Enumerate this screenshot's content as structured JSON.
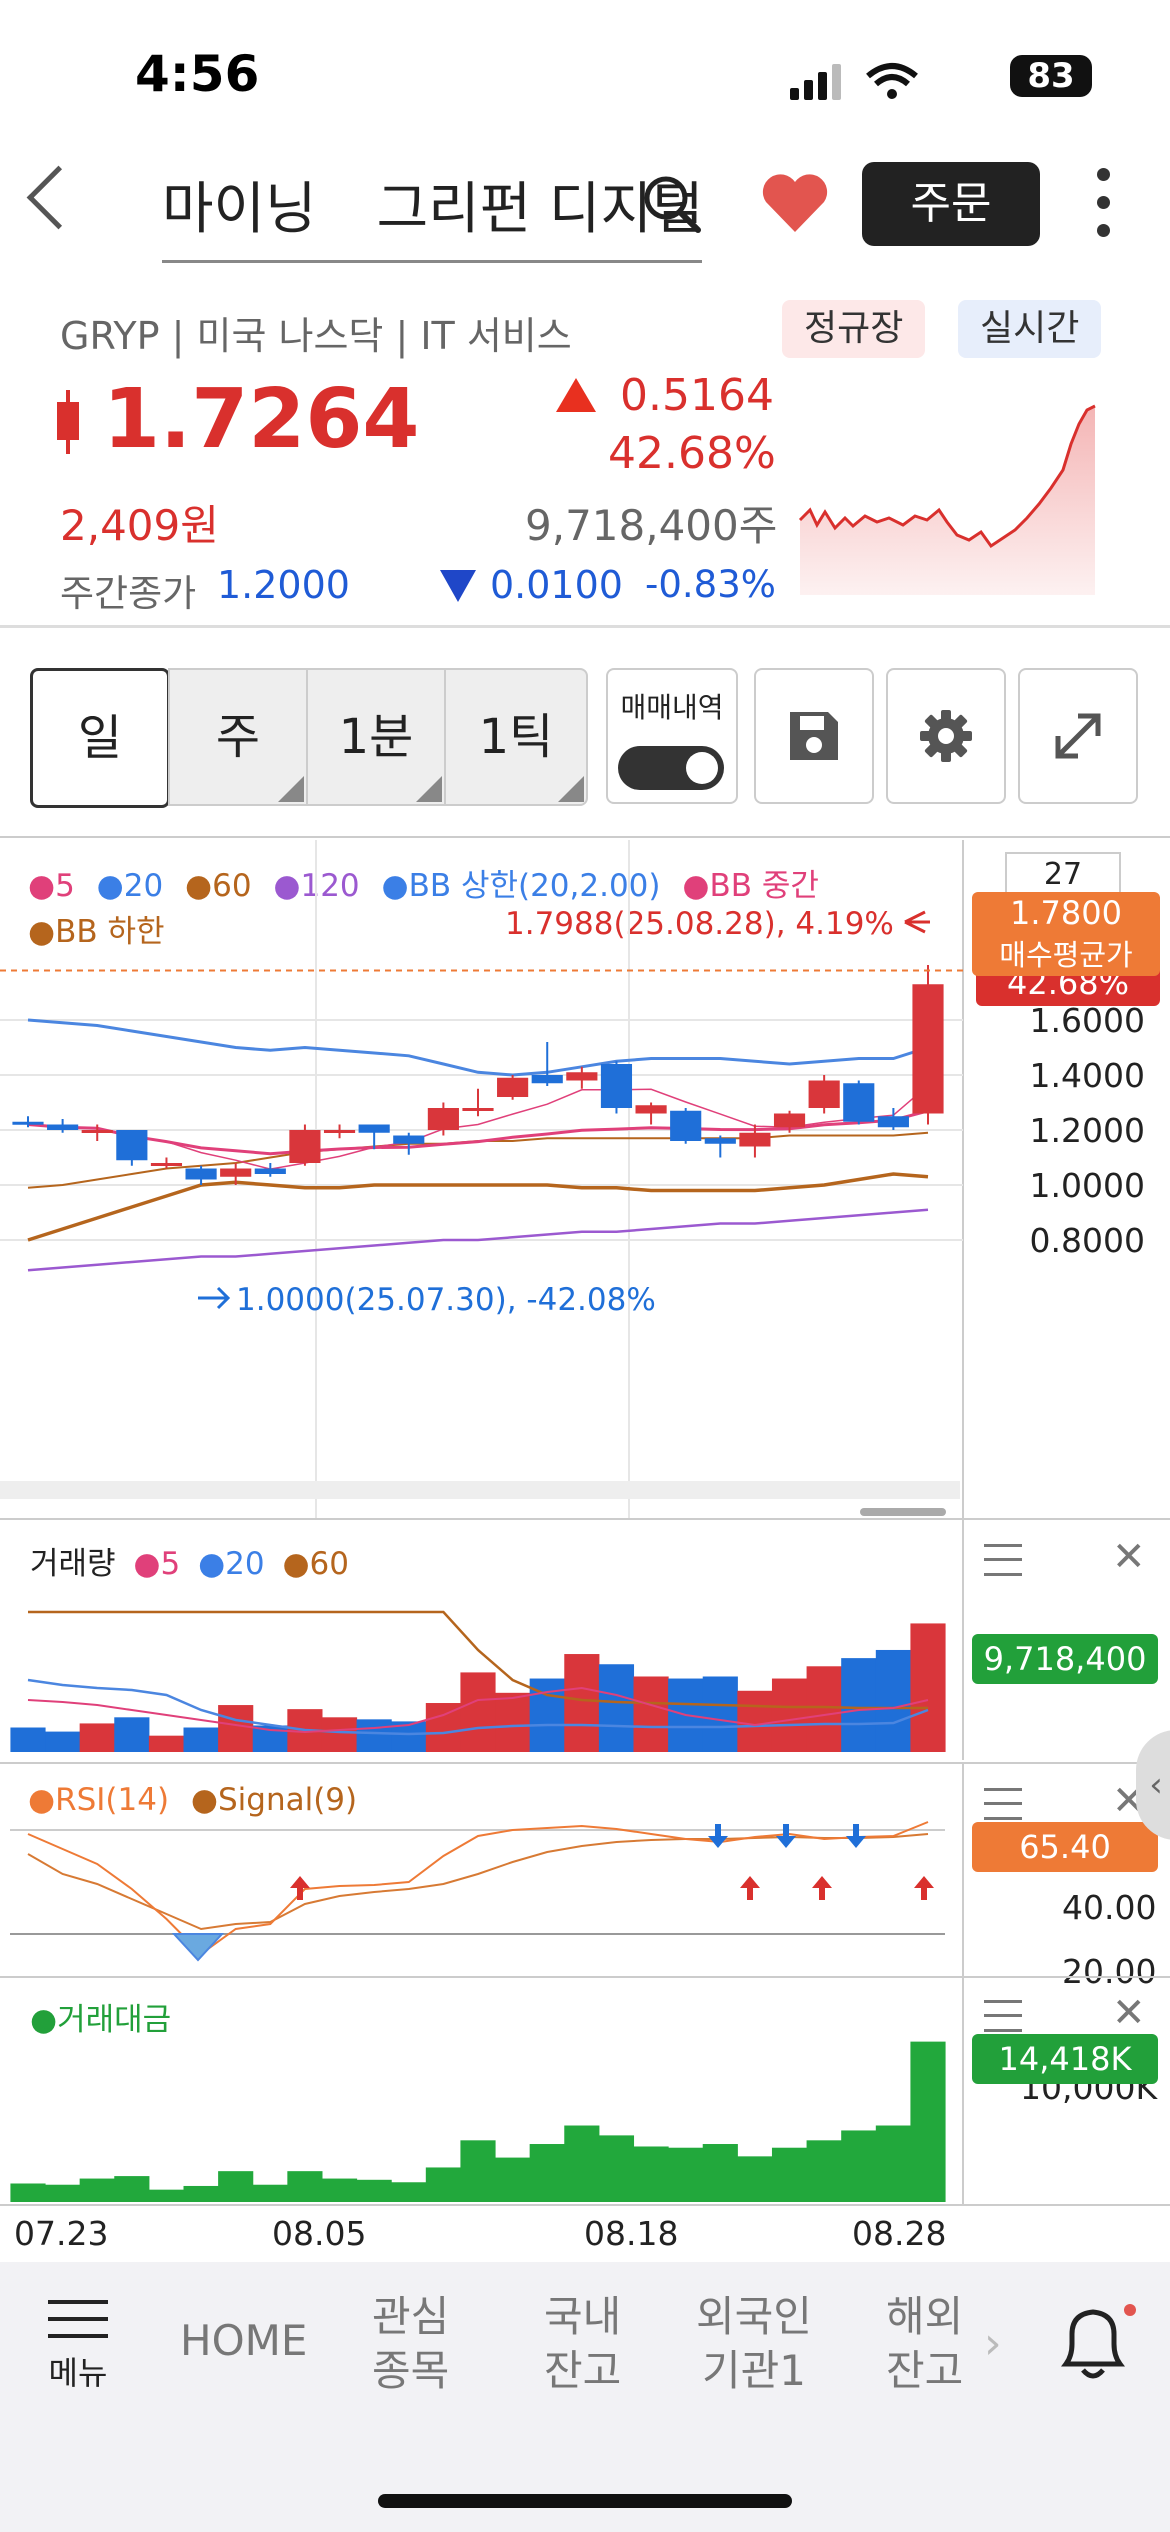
{
  "status": {
    "time": "4:56",
    "battery": "83"
  },
  "header": {
    "stock_name_1": "마이닝",
    "stock_name_2": "그리펀 디지털",
    "order_label": "주문"
  },
  "quote": {
    "ticker_line": "GRYP | 미국 나스닥 | IT 서비스",
    "session_label": "정규장",
    "realtime_label": "실시간",
    "price": "1.7264",
    "change": "0.5164",
    "change_pct": "42.68%",
    "krw": "2,409원",
    "volume": "9,718,400주",
    "after_label": "주간종가",
    "after_price": "1.2000",
    "after_change": "0.0100",
    "after_change_pct": "-0.83%"
  },
  "toolbar": {
    "periods": [
      "일",
      "주",
      "1분",
      "1틱"
    ],
    "trade_history_label": "매매내역"
  },
  "chart": {
    "legend_row1": [
      "5",
      "20",
      "60",
      "120",
      "BB 상한(20,2.00)",
      "BB 중간"
    ],
    "legend_row2": "BB 하한",
    "high_note": "1.7988(25.08.28), 4.19%",
    "low_note": "1.0000(25.07.30), -42.08%",
    "count_box": "27",
    "avg_price_value": "1.7800",
    "avg_price_label": "매수평균가",
    "hidden_pct": "42.68%",
    "y_ticks": [
      "1.6000",
      "1.4000",
      "1.2000",
      "1.0000",
      "0.8000"
    ],
    "volume_legend": [
      "거래량",
      "5",
      "20",
      "60"
    ],
    "volume_tag": "9,718,400",
    "rsi_legend": [
      "RSI(14)",
      "Signal(9)"
    ],
    "rsi_tag": "65.40",
    "rsi_ticks": [
      "40.00",
      "20.00"
    ],
    "amount_legend": "거래대금",
    "amount_tag": "14,418K",
    "amount_tick": "10,000K",
    "x_ticks": [
      "07.23",
      "08.05",
      "08.18",
      "08.28"
    ]
  },
  "chart_data": {
    "type": "candlestick",
    "dates_shown": [
      "07.23",
      "08.05",
      "08.18",
      "08.28"
    ],
    "candles": [
      {
        "o": 1.23,
        "h": 1.25,
        "l": 1.21,
        "c": 1.22
      },
      {
        "o": 1.22,
        "h": 1.24,
        "l": 1.19,
        "c": 1.2
      },
      {
        "o": 1.2,
        "h": 1.22,
        "l": 1.16,
        "c": 1.2
      },
      {
        "o": 1.2,
        "h": 1.2,
        "l": 1.07,
        "c": 1.09
      },
      {
        "o": 1.08,
        "h": 1.1,
        "l": 1.06,
        "c": 1.08
      },
      {
        "o": 1.06,
        "h": 1.07,
        "l": 1.0,
        "c": 1.02
      },
      {
        "o": 1.03,
        "h": 1.08,
        "l": 1.0,
        "c": 1.06
      },
      {
        "o": 1.06,
        "h": 1.08,
        "l": 1.03,
        "c": 1.04
      },
      {
        "o": 1.08,
        "h": 1.22,
        "l": 1.07,
        "c": 1.2
      },
      {
        "o": 1.2,
        "h": 1.22,
        "l": 1.17,
        "c": 1.2
      },
      {
        "o": 1.22,
        "h": 1.22,
        "l": 1.13,
        "c": 1.19
      },
      {
        "o": 1.18,
        "h": 1.19,
        "l": 1.11,
        "c": 1.15
      },
      {
        "o": 1.2,
        "h": 1.3,
        "l": 1.18,
        "c": 1.28
      },
      {
        "o": 1.27,
        "h": 1.35,
        "l": 1.25,
        "c": 1.28
      },
      {
        "o": 1.32,
        "h": 1.4,
        "l": 1.31,
        "c": 1.39
      },
      {
        "o": 1.4,
        "h": 1.52,
        "l": 1.36,
        "c": 1.37
      },
      {
        "o": 1.38,
        "h": 1.43,
        "l": 1.35,
        "c": 1.41
      },
      {
        "o": 1.44,
        "h": 1.45,
        "l": 1.26,
        "c": 1.28
      },
      {
        "o": 1.26,
        "h": 1.3,
        "l": 1.22,
        "c": 1.29
      },
      {
        "o": 1.27,
        "h": 1.28,
        "l": 1.15,
        "c": 1.16
      },
      {
        "o": 1.17,
        "h": 1.18,
        "l": 1.1,
        "c": 1.15
      },
      {
        "o": 1.14,
        "h": 1.22,
        "l": 1.1,
        "c": 1.19
      },
      {
        "o": 1.21,
        "h": 1.27,
        "l": 1.19,
        "c": 1.26
      },
      {
        "o": 1.28,
        "h": 1.4,
        "l": 1.26,
        "c": 1.38
      },
      {
        "o": 1.37,
        "h": 1.38,
        "l": 1.22,
        "c": 1.23
      },
      {
        "o": 1.25,
        "h": 1.28,
        "l": 1.2,
        "c": 1.21
      },
      {
        "o": 1.26,
        "h": 1.8,
        "l": 1.22,
        "c": 1.73
      }
    ],
    "volume": [
      12,
      10,
      14,
      17,
      8,
      12,
      23,
      13,
      21,
      17,
      16,
      15,
      24,
      39,
      29,
      36,
      48,
      43,
      37,
      36,
      37,
      30,
      36,
      42,
      46,
      50,
      63
    ],
    "amount": [
      15,
      14,
      19,
      21,
      10,
      13,
      25,
      14,
      25,
      19,
      18,
      16,
      28,
      50,
      36,
      47,
      62,
      54,
      45,
      44,
      47,
      37,
      44,
      50,
      58,
      62,
      130
    ],
    "rsi_range": [
      20,
      80
    ]
  },
  "bottom_nav": {
    "menu": "메뉴",
    "home": "HOME",
    "watch1": "관심",
    "watch2": "종목",
    "dom1": "국내",
    "dom2": "잔고",
    "for1": "외국인",
    "for2": "기관1",
    "ovs1": "해외",
    "ovs2": "잔고"
  }
}
